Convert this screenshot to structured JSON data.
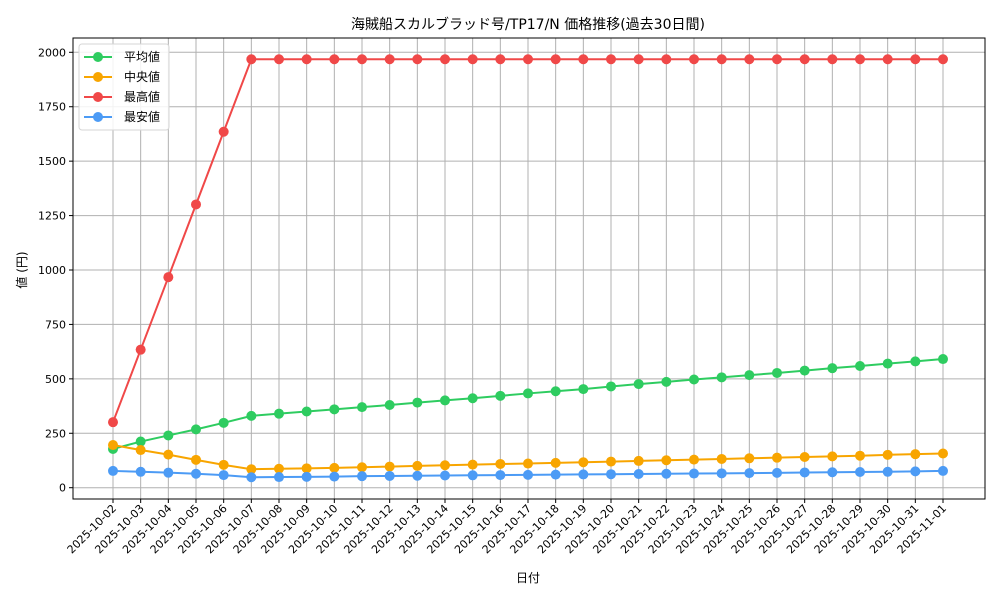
{
  "chart_data": {
    "type": "line",
    "title": "海賊船スカルブラッド号/TP17/N 価格推移(過去30日間)",
    "xlabel": "日付",
    "ylabel": "値 (円)",
    "ylim": [
      -50,
      2060
    ],
    "yticks": [
      0,
      250,
      500,
      750,
      1000,
      1250,
      1500,
      1750,
      2000
    ],
    "grid": true,
    "legend_position": "upper left",
    "categories": [
      "2025-10-02",
      "2025-10-03",
      "2025-10-04",
      "2025-10-05",
      "2025-10-06",
      "2025-10-07",
      "2025-10-08",
      "2025-10-09",
      "2025-10-10",
      "2025-10-11",
      "2025-10-12",
      "2025-10-13",
      "2025-10-14",
      "2025-10-15",
      "2025-10-16",
      "2025-10-17",
      "2025-10-18",
      "2025-10-19",
      "2025-10-20",
      "2025-10-21",
      "2025-10-22",
      "2025-10-23",
      "2025-10-24",
      "2025-10-25",
      "2025-10-26",
      "2025-10-27",
      "2025-10-28",
      "2025-10-29",
      "2025-10-30",
      "2025-10-31",
      "2025-11-01"
    ],
    "series": [
      {
        "name": "平均値",
        "color": "#2ecc60",
        "values": [
          178,
          212,
          240,
          268,
          298,
          330,
          340,
          350,
          360,
          370,
          380,
          391,
          401,
          411,
          422,
          433,
          443,
          453,
          465,
          476,
          486,
          497,
          507,
          517,
          527,
          538,
          549,
          559,
          570,
          580,
          591
        ]
      },
      {
        "name": "中央値",
        "color": "#f8a500",
        "values": [
          196,
          173,
          152,
          128,
          105,
          85,
          87,
          89,
          91,
          94,
          97,
          100,
          103,
          106,
          109,
          111,
          114,
          117,
          120,
          123,
          126,
          129,
          132,
          135,
          138,
          141,
          144,
          147,
          151,
          154,
          157
        ]
      },
      {
        "name": "最高値",
        "color": "#f04848",
        "values": [
          301,
          634,
          967,
          1301,
          1635,
          1968,
          1968,
          1968,
          1968,
          1968,
          1968,
          1968,
          1968,
          1968,
          1968,
          1968,
          1968,
          1968,
          1968,
          1968,
          1968,
          1968,
          1968,
          1968,
          1968,
          1968,
          1968,
          1968,
          1968,
          1968,
          1968
        ]
      },
      {
        "name": "最安値",
        "color": "#4c9bf5",
        "values": [
          77,
          73,
          69,
          64,
          58,
          48,
          49,
          50,
          51,
          53,
          54,
          55,
          56,
          57,
          58,
          59,
          60,
          61,
          62,
          63,
          64,
          65,
          66,
          67,
          68,
          70,
          71,
          72,
          73,
          75,
          77
        ]
      }
    ]
  }
}
